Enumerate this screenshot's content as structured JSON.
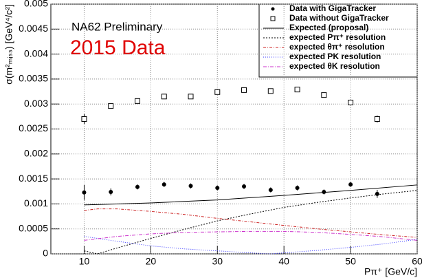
{
  "chart_data": {
    "type": "line",
    "annotations": [
      "NA62 Preliminary",
      "2015 Data"
    ],
    "x_label": "Pπ⁺ [GeV/c]",
    "y_label": "σ(m²ₘᵢₛₛ) [GeV⁴/c²]",
    "xlim": [
      5,
      60
    ],
    "xticks": [
      10,
      20,
      30,
      40,
      50,
      60
    ],
    "ylim": [
      0,
      0.005
    ],
    "yticks": [
      0,
      0.0005,
      0.001,
      0.0015,
      0.002,
      0.0025,
      0.003,
      0.0035,
      0.004,
      0.0045,
      0.005
    ],
    "grid": true,
    "legend": "top-right",
    "series": [
      {
        "name": "Data with GigaTracker",
        "color": "#000000",
        "marker": "circle-filled",
        "x": [
          10,
          14,
          18,
          22,
          26,
          30,
          34,
          38,
          42,
          46,
          50,
          54
        ],
        "values": [
          0.00123,
          0.00124,
          0.00134,
          0.00139,
          0.00136,
          0.00132,
          0.00135,
          0.00128,
          0.00132,
          0.00124,
          0.00139,
          0.0012
        ],
        "errors": [
          0.00015,
          7e-05,
          5e-05,
          5e-05,
          5e-05,
          5e-05,
          5e-05,
          5e-05,
          5e-05,
          5e-05,
          5e-05,
          8e-05
        ]
      },
      {
        "name": "Data without GigaTracker",
        "color": "#000000",
        "marker": "square-open",
        "x": [
          10,
          14,
          18,
          22,
          26,
          30,
          34,
          38,
          42,
          46,
          50,
          54
        ],
        "values": [
          0.0027,
          0.00296,
          0.00306,
          0.00315,
          0.00315,
          0.00324,
          0.00328,
          0.00326,
          0.00329,
          0.00318,
          0.00303,
          0.0027
        ],
        "errors": [
          0.0001,
          4e-05,
          3e-05,
          3e-05,
          3e-05,
          3e-05,
          3e-05,
          3e-05,
          3e-05,
          3e-05,
          4e-05,
          7e-05
        ]
      },
      {
        "name": "Expected (proposal)",
        "color": "#000000",
        "dash": "none",
        "x": [
          10,
          20,
          30,
          40,
          50,
          60
        ],
        "values": [
          0.00098,
          0.00102,
          0.00108,
          0.00117,
          0.00127,
          0.00138
        ]
      },
      {
        "name": "expected Pπ⁺ resolution",
        "color": "#000000",
        "dash": "2,2",
        "x": [
          10,
          12,
          15,
          20,
          25,
          30,
          35,
          40,
          45,
          50,
          55,
          60
        ],
        "values": [
          6e-05,
          0,
          0.00012,
          0.00031,
          0.00049,
          0.00066,
          0.0008,
          0.00093,
          0.00103,
          0.00112,
          0.0012,
          0.00127
        ]
      },
      {
        "name": "expected θπ⁺ resolution",
        "color": "#cc2222",
        "dash": "4,2,1,2",
        "x": [
          10,
          12,
          15,
          20,
          25,
          30,
          35,
          40,
          45,
          50,
          55,
          60
        ],
        "values": [
          0.00087,
          0.0009,
          0.0009,
          0.00085,
          0.00079,
          0.00071,
          0.00064,
          0.00057,
          0.0005,
          0.00044,
          0.00038,
          0.00033
        ]
      },
      {
        "name": "expected PK resolution",
        "color": "#3333ff",
        "dash": "1,2",
        "x": [
          10,
          15,
          20,
          25,
          30,
          35,
          38,
          40,
          45,
          50,
          55,
          60
        ],
        "values": [
          0.00035,
          0.00025,
          0.00016,
          0.0001,
          6e-05,
          2e-05,
          0,
          2e-05,
          7e-05,
          0.00013,
          0.0002,
          0.00029
        ]
      },
      {
        "name": "expected θK resolution",
        "color": "#cc33cc",
        "dash": "5,2,1,2",
        "x": [
          10,
          15,
          20,
          25,
          30,
          35,
          40,
          45,
          50,
          55,
          60
        ],
        "values": [
          0.00027,
          0.00035,
          0.0004,
          0.00043,
          0.00044,
          0.00045,
          0.00045,
          0.00043,
          0.00039,
          0.00034,
          0.00027
        ]
      }
    ]
  }
}
